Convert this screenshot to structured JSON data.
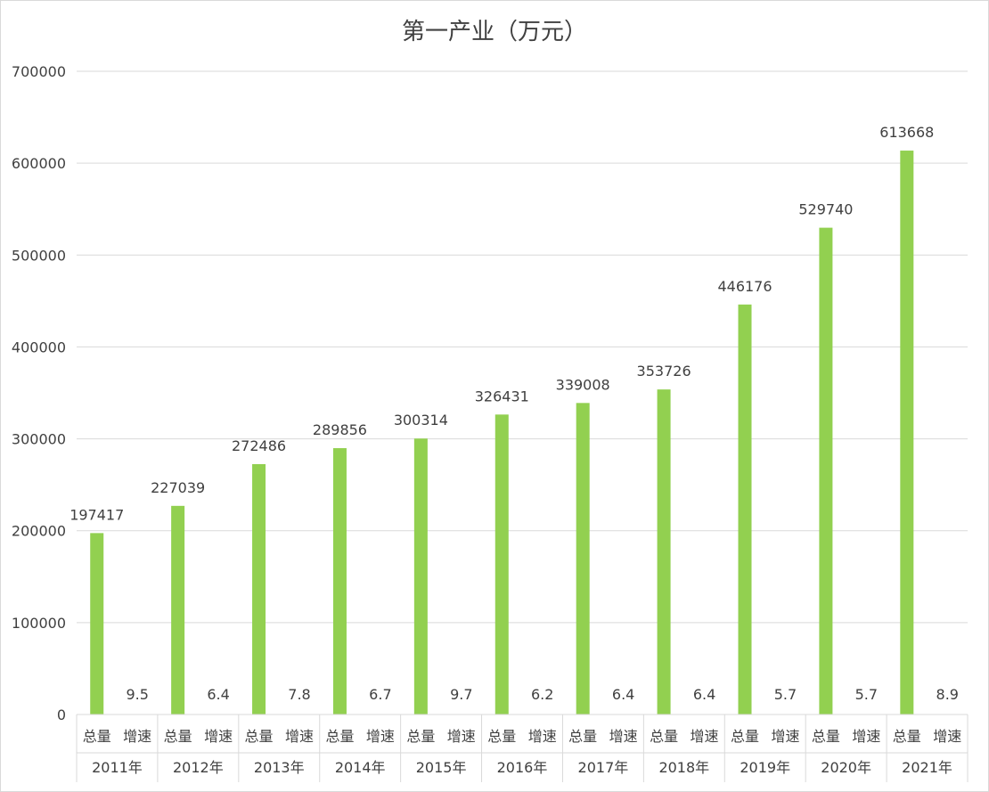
{
  "chart_data": {
    "type": "bar",
    "title": "第一产业（万元）",
    "ylim": [
      0,
      700000
    ],
    "yticks": [
      "0",
      "100000",
      "200000",
      "300000",
      "400000",
      "500000",
      "600000",
      "700000"
    ],
    "grid": true,
    "bar_color": "#92d050",
    "sub_categories": [
      "总量",
      "增速"
    ],
    "groups": [
      {
        "year": "2011年",
        "total": 197417,
        "growth": 9.5
      },
      {
        "year": "2012年",
        "total": 227039,
        "growth": 6.4
      },
      {
        "year": "2013年",
        "total": 272486,
        "growth": 7.8
      },
      {
        "year": "2014年",
        "total": 289856,
        "growth": 6.7
      },
      {
        "year": "2015年",
        "total": 300314,
        "growth": 9.7
      },
      {
        "year": "2016年",
        "total": 326431,
        "growth": 6.2
      },
      {
        "year": "2017年",
        "total": 339008,
        "growth": 6.4
      },
      {
        "year": "2018年",
        "total": 353726,
        "growth": 6.4
      },
      {
        "year": "2019年",
        "total": 446176,
        "growth": 5.7
      },
      {
        "year": "2020年",
        "total": 529740,
        "growth": 5.7
      },
      {
        "year": "2021年",
        "total": 613668,
        "growth": 8.9
      }
    ]
  }
}
